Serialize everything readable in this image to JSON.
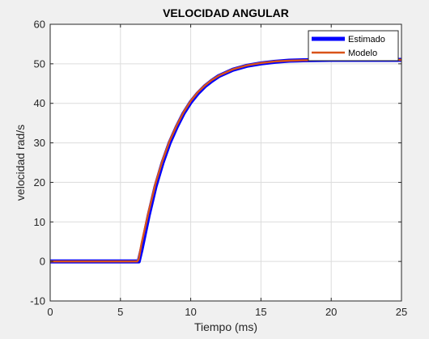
{
  "chart_data": {
    "type": "line",
    "title": "VELOCIDAD ANGULAR",
    "xlabel": "Tiempo (ms)",
    "ylabel": "velocidad rad/s",
    "xlim": [
      0,
      25
    ],
    "ylim": [
      -10,
      60
    ],
    "xticks": [
      "0",
      "5",
      "10",
      "15",
      "20",
      "25"
    ],
    "yticks": [
      "-10",
      "0",
      "10",
      "20",
      "30",
      "40",
      "50",
      "60"
    ],
    "grid": true,
    "legend_position": "top-right",
    "series": [
      {
        "name": "Estimado",
        "color": "#0000ff",
        "x": [
          0,
          2,
          4,
          6.2,
          6.3,
          6.5,
          7,
          7.5,
          8,
          8.5,
          9,
          9.5,
          10,
          10.5,
          11,
          11.5,
          12,
          13,
          14,
          15,
          16,
          17,
          18,
          20,
          22,
          25
        ],
        "y": [
          0,
          0,
          0,
          0,
          0,
          3.0,
          11.5,
          19.0,
          25.0,
          30.0,
          34.0,
          37.5,
          40.3,
          42.5,
          44.3,
          45.7,
          46.9,
          48.5,
          49.5,
          50.1,
          50.5,
          50.8,
          50.9,
          51.0,
          51.0,
          51.0
        ]
      },
      {
        "name": "Modelo",
        "color": "#d95319",
        "x": [
          0,
          2,
          4,
          6.2,
          6.3,
          6.5,
          7,
          7.5,
          8,
          8.5,
          9,
          9.5,
          10,
          10.5,
          11,
          11.5,
          12,
          13,
          14,
          15,
          16,
          17,
          18,
          20,
          22,
          25
        ],
        "y": [
          0,
          0,
          0,
          0,
          0.6,
          4.5,
          12.5,
          19.8,
          25.6,
          30.5,
          34.4,
          37.8,
          40.6,
          42.8,
          44.5,
          45.9,
          47.0,
          48.6,
          49.6,
          50.2,
          50.6,
          50.8,
          50.9,
          51.0,
          51.0,
          51.0
        ]
      }
    ]
  }
}
